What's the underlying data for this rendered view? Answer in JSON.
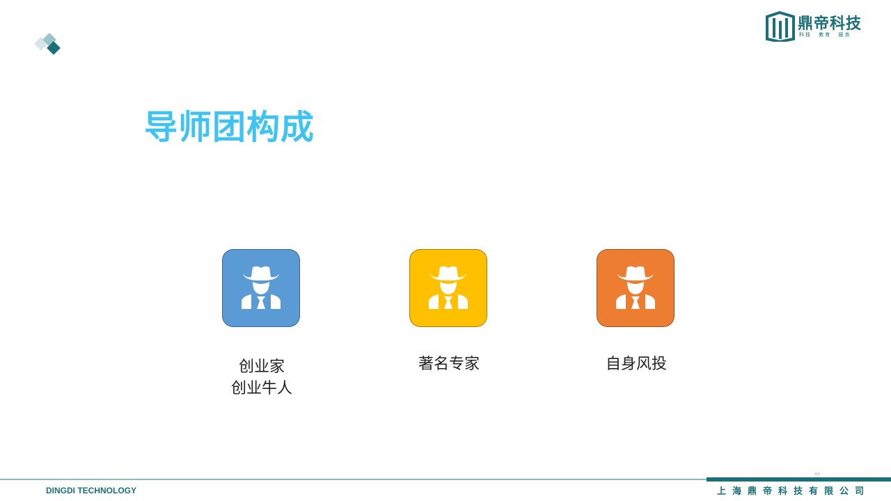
{
  "brand": {
    "logo_name": "鼎帝科技",
    "logo_tagline": "科技 教育 服务",
    "accent": "#1a6f78"
  },
  "slide": {
    "title": "导师团构成",
    "title_color": "#3fc3f2",
    "page_number": "44"
  },
  "cards": [
    {
      "icon": "mentor-hat-icon",
      "color": "#5b9bd5",
      "caption_lines": [
        "创业家",
        "创业牛人"
      ]
    },
    {
      "icon": "mentor-hat-icon",
      "color": "#ffc000",
      "caption_lines": [
        "著名专家"
      ]
    },
    {
      "icon": "mentor-hat-icon",
      "color": "#ed7d31",
      "caption_lines": [
        "自身风投"
      ]
    }
  ],
  "footer": {
    "left_text": "DINGDI TECHNOLOGY",
    "right_text": "上海鼎帝科技有限公司"
  }
}
